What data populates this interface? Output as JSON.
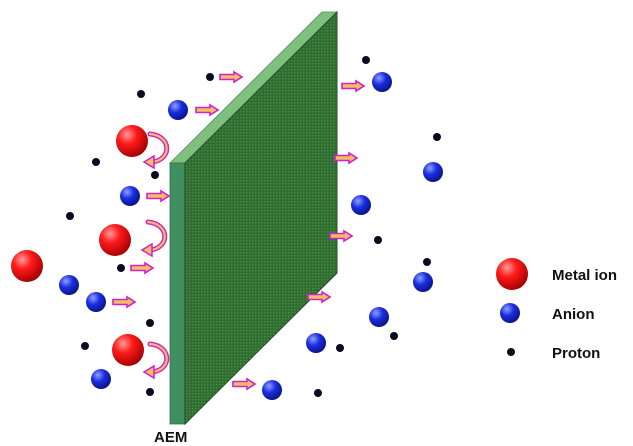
{
  "membrane": {
    "label": "AEM"
  },
  "legend": {
    "items": [
      {
        "key": "metal",
        "label": "Metal ion"
      },
      {
        "key": "anion",
        "label": "Anion"
      },
      {
        "key": "proton",
        "label": "Proton"
      }
    ]
  },
  "colors": {
    "metal_ion": "#e00000",
    "anion": "#1a2de0",
    "proton": "#0a0a20",
    "membrane_face": "#2f6b2f",
    "arrow_fill": "#f0c060",
    "arrow_outline": "#d020d0"
  }
}
